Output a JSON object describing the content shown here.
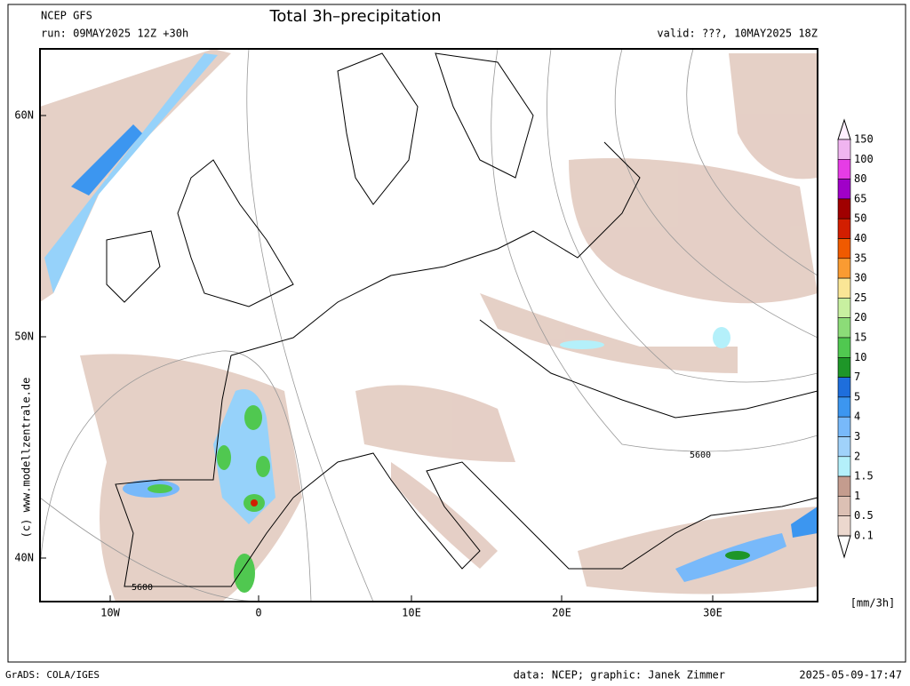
{
  "header": {
    "model": "NCEP GFS",
    "run": "run: 09MAY2025 12Z +30h",
    "title": "Total 3h–precipitation",
    "valid": "valid: ???, 10MAY2025 18Z"
  },
  "map": {
    "lat_labels": [
      "60N",
      "50N",
      "40N"
    ],
    "lon_labels": [
      "10W",
      "0",
      "10E",
      "20E",
      "30E"
    ],
    "contour_labels": [
      "5600",
      "5600"
    ]
  },
  "legend": {
    "levels": [
      "150",
      "100",
      "80",
      "65",
      "50",
      "40",
      "35",
      "30",
      "25",
      "20",
      "15",
      "10",
      "7",
      "5",
      "4",
      "3",
      "2",
      "1.5",
      "1",
      "0.5",
      "0.1"
    ],
    "colors": [
      "#f0b4f0",
      "#e63ce6",
      "#a000c8",
      "#a00000",
      "#d21e00",
      "#f05a00",
      "#fa9b32",
      "#fae696",
      "#c8f0a0",
      "#8cdc78",
      "#50c850",
      "#1e9628",
      "#1e6edc",
      "#3c96f0",
      "#78b9fa",
      "#a0d2fa",
      "#b4f0fa",
      "#c49c8e",
      "#dcc0b4",
      "#ecd8ce"
    ],
    "unit": "[mm/3h]"
  },
  "side_credit": "(c) www.modellzentrale.de",
  "footer": {
    "left": "GrADS: COLA/IGES",
    "center": "data: NCEP; graphic: Janek Zimmer",
    "right": "2025-05-09-17:47"
  }
}
